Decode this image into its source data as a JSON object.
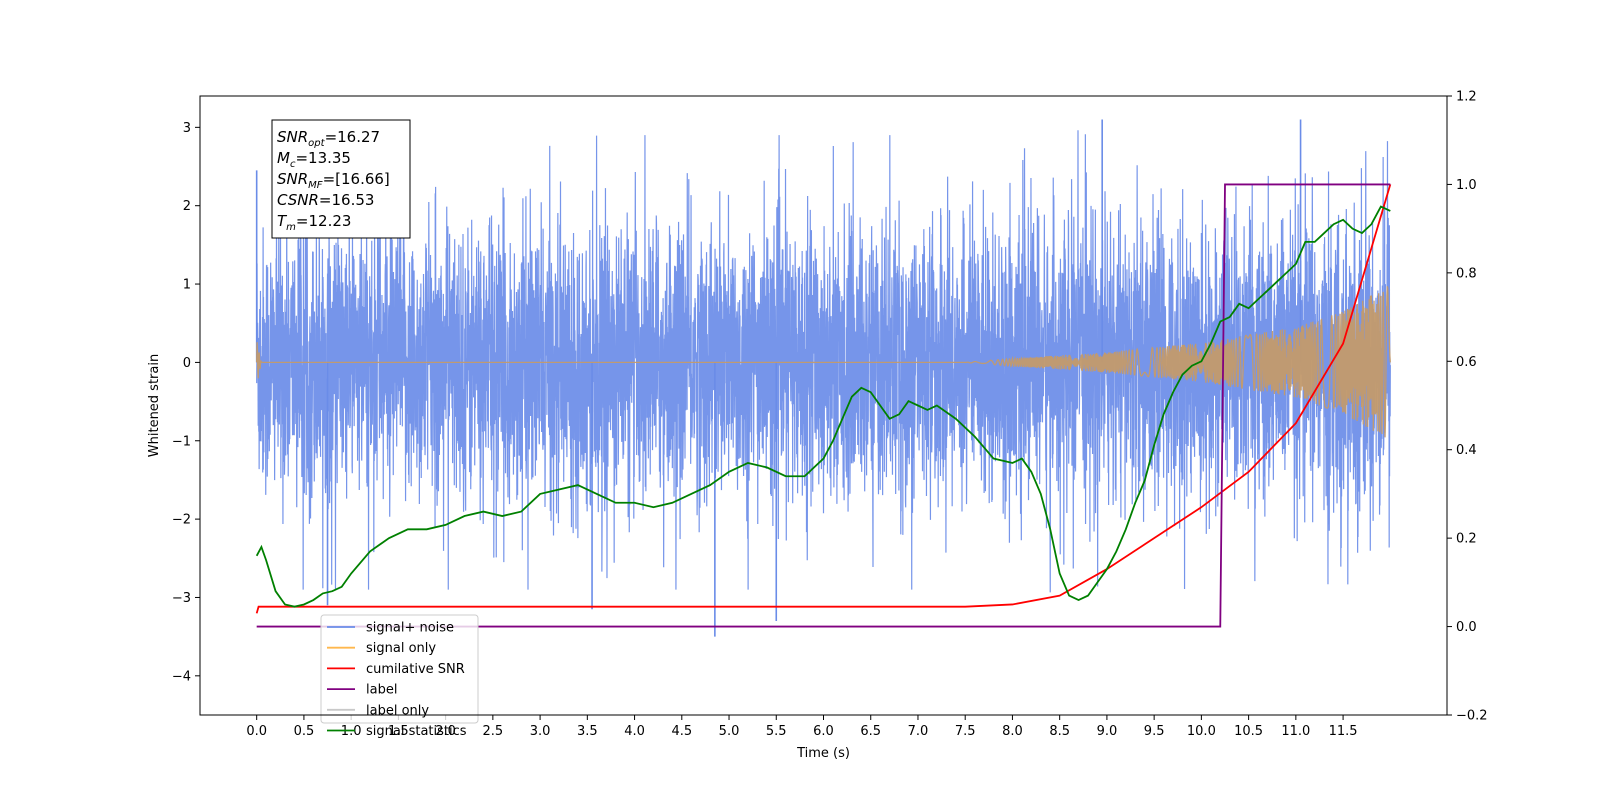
{
  "chart_data": {
    "type": "line",
    "xlabel": "Time (s)",
    "ylabel": "Whitened strain",
    "xlim": [
      -0.6,
      12.6
    ],
    "ylim_left": [
      -4.5,
      3.4
    ],
    "ylim_right": [
      -0.2,
      1.2
    ],
    "xticks": [
      0.0,
      0.5,
      1.0,
      1.5,
      2.0,
      2.5,
      3.0,
      3.5,
      4.0,
      4.5,
      5.0,
      5.5,
      6.0,
      6.5,
      7.0,
      7.5,
      8.0,
      8.5,
      9.0,
      9.5,
      10.0,
      10.5,
      11.0,
      11.5
    ],
    "xtick_labels": [
      "0.0",
      "0.5",
      "1.0",
      "1.5",
      "2.0",
      "2.5",
      "3.0",
      "3.5",
      "4.0",
      "4.5",
      "5.0",
      "5.5",
      "6.0",
      "6.5",
      "7.0",
      "7.5",
      "8.0",
      "8.5",
      "9.0",
      "9.5",
      "10.0",
      "10.5",
      "11.0",
      "11.5"
    ],
    "yticks_left": [
      -4,
      -3,
      -2,
      -1,
      0,
      1,
      2,
      3
    ],
    "ytick_labels_left": [
      "−4",
      "−3",
      "−2",
      "−1",
      "0",
      "1",
      "2",
      "3"
    ],
    "yticks_right": [
      -0.2,
      0.0,
      0.2,
      0.4,
      0.6,
      0.8,
      1.0,
      1.2
    ],
    "ytick_labels_right": [
      "−0.2",
      "0.0",
      "0.2",
      "0.4",
      "0.6",
      "0.8",
      "1.0",
      "1.2"
    ],
    "annotation": {
      "lines": [
        {
          "base": "SNR",
          "sub": "opt",
          "value": "=16.27"
        },
        {
          "base": "M",
          "sub": "c",
          "value": "=13.35"
        },
        {
          "base": "SNR",
          "sub": "MF",
          "value": "=[16.66]"
        },
        {
          "base": "CSNR",
          "sub": "",
          "value": "=16.53"
        },
        {
          "base": "T",
          "sub": "m",
          "value": "=12.23"
        }
      ]
    },
    "legend": {
      "position": "lower-left",
      "entries": [
        {
          "label": "signal+ noise",
          "color": "#6a8ce8"
        },
        {
          "label": "signal only",
          "color": "#ffb84d"
        },
        {
          "label": "cumilative SNR",
          "color": "#ff0000"
        },
        {
          "label": "label",
          "color": "#800080"
        },
        {
          "label": "label only",
          "color": "#c9c9c9"
        },
        {
          "label": "signal statistics",
          "color": "#008000"
        }
      ]
    },
    "series": [
      {
        "name": "signal+ noise",
        "axis": "left",
        "color": "#6a8ce8",
        "t_start": 0.0,
        "t_end": 12.0,
        "noise_envelope": {
          "typical_amplitude": 1.0,
          "max_peak": 3.1,
          "min_peak": -3.5
        },
        "outlier_spikes": [
          {
            "x": 0.0,
            "y": 2.45
          },
          {
            "x": 0.75,
            "y": -3.1
          },
          {
            "x": 3.55,
            "y": -3.15
          },
          {
            "x": 4.85,
            "y": -3.5
          },
          {
            "x": 5.5,
            "y": -3.3
          },
          {
            "x": 8.95,
            "y": 3.1
          },
          {
            "x": 11.05,
            "y": 3.1
          }
        ]
      },
      {
        "name": "signal only",
        "axis": "left",
        "color": "#ffb84d",
        "chirp_amplitude": [
          [
            0.0,
            0.3
          ],
          [
            0.05,
            0.0
          ],
          [
            7.5,
            0.0
          ],
          [
            8.0,
            0.05
          ],
          [
            9.0,
            0.13
          ],
          [
            10.0,
            0.25
          ],
          [
            11.0,
            0.45
          ],
          [
            11.5,
            0.65
          ],
          [
            12.0,
            1.0
          ]
        ]
      },
      {
        "name": "cumilative SNR",
        "axis": "right",
        "color": "#ff0000",
        "x": [
          0.0,
          0.02,
          3.0,
          7.5,
          8.0,
          8.5,
          9.0,
          9.5,
          10.0,
          10.5,
          11.0,
          11.5,
          12.0
        ],
        "y": [
          0.03,
          0.045,
          0.045,
          0.045,
          0.05,
          0.07,
          0.13,
          0.2,
          0.27,
          0.35,
          0.46,
          0.64,
          1.0
        ]
      },
      {
        "name": "label",
        "axis": "right",
        "color": "#800080",
        "x": [
          0.0,
          10.2,
          10.25,
          12.0
        ],
        "y": [
          0.0,
          0.0,
          1.0,
          1.0
        ]
      },
      {
        "name": "signal statistics",
        "axis": "right",
        "color": "#008000",
        "x": [
          0.0,
          0.05,
          0.1,
          0.2,
          0.3,
          0.4,
          0.5,
          0.6,
          0.7,
          0.8,
          0.9,
          1.0,
          1.2,
          1.4,
          1.6,
          1.8,
          2.0,
          2.2,
          2.4,
          2.6,
          2.8,
          3.0,
          3.2,
          3.4,
          3.6,
          3.8,
          4.0,
          4.2,
          4.4,
          4.6,
          4.8,
          5.0,
          5.2,
          5.4,
          5.6,
          5.8,
          6.0,
          6.1,
          6.2,
          6.3,
          6.4,
          6.5,
          6.6,
          6.7,
          6.8,
          6.9,
          7.0,
          7.1,
          7.2,
          7.4,
          7.6,
          7.8,
          8.0,
          8.1,
          8.2,
          8.3,
          8.4,
          8.5,
          8.6,
          8.7,
          8.8,
          8.9,
          9.0,
          9.1,
          9.2,
          9.3,
          9.4,
          9.5,
          9.6,
          9.7,
          9.8,
          9.9,
          10.0,
          10.1,
          10.2,
          10.3,
          10.4,
          10.5,
          10.6,
          10.7,
          10.8,
          10.9,
          11.0,
          11.1,
          11.2,
          11.3,
          11.4,
          11.5,
          11.6,
          11.7,
          11.8,
          11.9,
          12.0
        ],
        "y": [
          0.16,
          0.18,
          0.15,
          0.08,
          0.05,
          0.045,
          0.05,
          0.06,
          0.075,
          0.08,
          0.09,
          0.12,
          0.17,
          0.2,
          0.22,
          0.22,
          0.23,
          0.25,
          0.26,
          0.25,
          0.26,
          0.3,
          0.31,
          0.32,
          0.3,
          0.28,
          0.28,
          0.27,
          0.28,
          0.3,
          0.32,
          0.35,
          0.37,
          0.36,
          0.34,
          0.34,
          0.38,
          0.42,
          0.47,
          0.52,
          0.54,
          0.53,
          0.5,
          0.47,
          0.48,
          0.51,
          0.5,
          0.49,
          0.5,
          0.47,
          0.43,
          0.38,
          0.37,
          0.38,
          0.35,
          0.3,
          0.22,
          0.12,
          0.07,
          0.06,
          0.07,
          0.1,
          0.13,
          0.17,
          0.22,
          0.28,
          0.33,
          0.41,
          0.48,
          0.53,
          0.57,
          0.59,
          0.6,
          0.64,
          0.69,
          0.7,
          0.73,
          0.72,
          0.74,
          0.76,
          0.78,
          0.8,
          0.82,
          0.87,
          0.87,
          0.89,
          0.91,
          0.92,
          0.9,
          0.89,
          0.91,
          0.95,
          0.94
        ]
      }
    ]
  }
}
